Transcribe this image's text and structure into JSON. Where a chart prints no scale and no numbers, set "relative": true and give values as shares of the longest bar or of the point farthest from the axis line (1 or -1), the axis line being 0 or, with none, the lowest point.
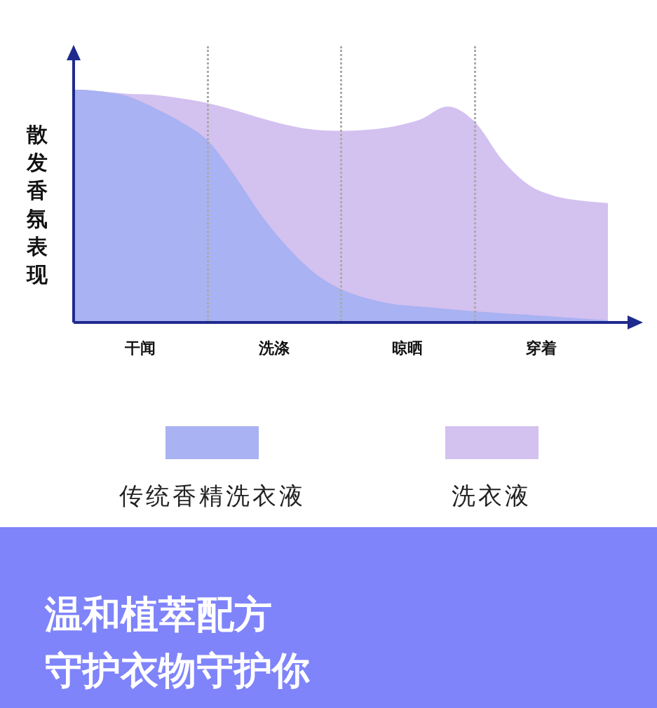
{
  "chart_data": {
    "type": "area",
    "relative": true,
    "title": "温和植萃配方",
    "subtitle": "守护衣物守护你",
    "ylabel": "散发香氛表现",
    "marker": "none",
    "legend": "bottom",
    "grid": "x",
    "categories": [
      null,
      null,
      null,
      null,
      null,
      null,
      null,
      null,
      null,
      null,
      null,
      null,
      null,
      null,
      null,
      null,
      null,
      null,
      null,
      null,
      null
    ],
    "series": [
      {
        "name": "传统香精洗衣液",
        "color": "#a9b2f2",
        "values": [
          1.0,
          0.99,
          0.97,
          0.92,
          0.86,
          0.78,
          0.63,
          0.46,
          0.32,
          0.21,
          0.14,
          0.1,
          0.075,
          0.065,
          0.055,
          0.045,
          0.037,
          0.03,
          0.022,
          0.014,
          0.006
        ]
      },
      {
        "name": "洗衣液",
        "color": "#d3c1f0",
        "values": [
          1.0,
          0.99,
          0.98,
          0.975,
          0.96,
          0.94,
          0.91,
          0.875,
          0.845,
          0.825,
          0.82,
          0.825,
          0.84,
          0.87,
          0.925,
          0.86,
          0.7,
          0.59,
          0.54,
          0.52,
          0.51
        ]
      }
    ],
    "annotations": [
      "干闻",
      "洗涤",
      "晾晒",
      "穿着"
    ]
  }
}
